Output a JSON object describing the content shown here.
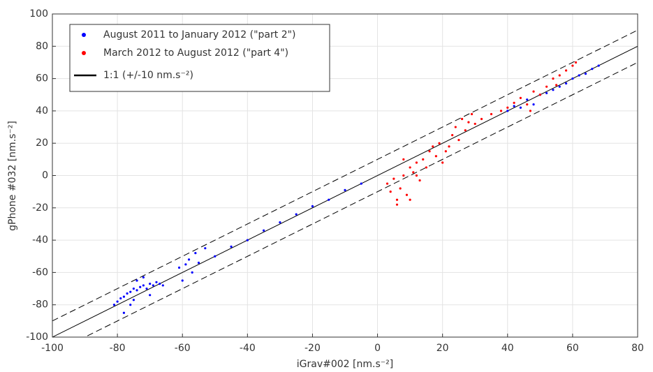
{
  "chart_data": {
    "type": "scatter",
    "xlabel": "iGrav#002 [nm.s⁻²]",
    "ylabel": "gPhone #032 [nm.s⁻²]",
    "xlim": [
      -100,
      80
    ],
    "xticks": [
      -100,
      -80,
      -60,
      -40,
      -20,
      0,
      20,
      40,
      60,
      80
    ],
    "ylim": [
      -100,
      100
    ],
    "yticks": [
      -100,
      -80,
      -60,
      -40,
      -20,
      0,
      20,
      40,
      60,
      80,
      100
    ],
    "grid": true,
    "legend": "upper left",
    "series": [
      {
        "name": "August 2011 to January 2012 (\"part 2\")",
        "color": "#0000ff",
        "x": [
          -81,
          -80,
          -79,
          -78,
          -77,
          -76,
          -75,
          -74,
          -73,
          -72,
          -71,
          -70,
          -69,
          -68,
          -67,
          -66,
          -78,
          -75,
          -72,
          -70,
          -74,
          -76,
          -61,
          -60,
          -59,
          -58,
          -57,
          -56,
          -55,
          -53,
          -50,
          -45,
          -40,
          -35,
          -30,
          -25,
          -20,
          -15,
          -10,
          -5,
          40,
          42,
          44,
          46,
          48,
          50,
          52,
          54,
          56,
          58,
          60,
          62,
          64,
          66,
          68
        ],
        "values": [
          -80,
          -78,
          -76,
          -75,
          -73,
          -72,
          -70,
          -71,
          -69,
          -68,
          -70,
          -67,
          -68,
          -66,
          -67,
          -68,
          -85,
          -77,
          -63,
          -74,
          -65,
          -80,
          -57,
          -65,
          -55,
          -52,
          -60,
          -48,
          -54,
          -45,
          -50,
          -44,
          -40,
          -34,
          -29,
          -24,
          -19,
          -15,
          -9,
          -5,
          40,
          43,
          42,
          47,
          44,
          50,
          51,
          53,
          55,
          57,
          60,
          62,
          63,
          66,
          68
        ]
      },
      {
        "name": "March  2012  to August 2012 (\"part 4\")",
        "color": "#ff0000",
        "x": [
          3,
          4,
          5,
          6,
          7,
          8,
          9,
          10,
          11,
          12,
          13,
          14,
          15,
          6,
          8,
          10,
          12,
          16,
          17,
          18,
          19,
          20,
          21,
          22,
          23,
          24,
          25,
          26,
          27,
          28,
          29,
          30,
          32,
          35,
          38,
          40,
          42,
          44,
          46,
          48,
          50,
          52,
          54,
          56,
          58,
          60,
          61,
          47,
          55
        ],
        "values": [
          -5,
          -10,
          -2,
          -15,
          -8,
          0,
          -12,
          5,
          2,
          8,
          -3,
          10,
          5,
          -18,
          10,
          -15,
          0,
          15,
          18,
          12,
          20,
          8,
          15,
          18,
          25,
          30,
          22,
          35,
          28,
          33,
          38,
          32,
          35,
          38,
          40,
          42,
          45,
          48,
          44,
          52,
          50,
          55,
          60,
          62,
          65,
          68,
          70,
          40,
          56
        ]
      }
    ],
    "reference_line": {
      "name": "1:1 (+/-10 nm.s⁻²)",
      "color": "#000000",
      "band": 10
    }
  }
}
